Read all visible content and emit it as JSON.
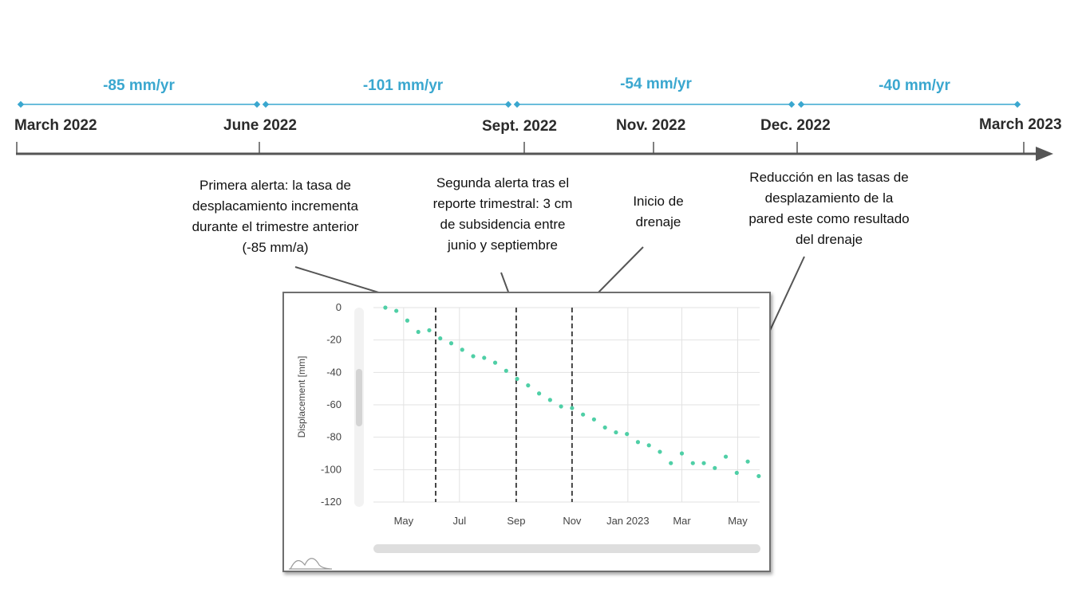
{
  "timeline": {
    "rates": [
      {
        "label": "-85 mm/yr"
      },
      {
        "label": "-101 mm/yr"
      },
      {
        "label": "-54 mm/yr"
      },
      {
        "label": "-40 mm/yr"
      }
    ],
    "dates": [
      {
        "label": "March 2022"
      },
      {
        "label": "June 2022"
      },
      {
        "label": "Sept. 2022"
      },
      {
        "label": "Nov. 2022"
      },
      {
        "label": "Dec. 2022"
      },
      {
        "label": "March 2023"
      }
    ],
    "colors": {
      "rate": "#3aa7cf",
      "axis": "#555555"
    }
  },
  "annotations": [
    {
      "text": "Primera alerta: la tasa de\ndesplacamiento incrementa\ndurante el trimestre anterior\n(-85 mm/a)"
    },
    {
      "text": "Segunda alerta tras el\nreporte trimestral: 3 cm\nde subsidencia entre\njunio y septiembre"
    },
    {
      "text": "Inicio de\ndrenaje"
    },
    {
      "text": "Reducción en las tasas de\ndesplazamiento de la\npared este como resultado\ndel drenaje"
    }
  ],
  "chart_data": {
    "type": "scatter",
    "ylabel": "Displacement [mm]",
    "ylim": [
      -120,
      0
    ],
    "yticks": [
      0,
      -20,
      -40,
      -60,
      -80,
      -100,
      -120
    ],
    "xlim": [
      "2022-03-29",
      "2023-05-25"
    ],
    "xticks": [
      {
        "label": "May",
        "date": "2022-05-01"
      },
      {
        "label": "Jul",
        "date": "2022-07-01"
      },
      {
        "label": "Sep",
        "date": "2022-09-01"
      },
      {
        "label": "Nov",
        "date": "2022-11-01"
      },
      {
        "label": "Jan 2023",
        "date": "2023-01-01"
      },
      {
        "label": "Mar",
        "date": "2023-03-01"
      },
      {
        "label": "May",
        "date": "2023-05-01"
      }
    ],
    "grid": true,
    "point_color": "#4fcfa6",
    "event_lines": [
      "2022-06-05",
      "2022-09-01",
      "2022-11-01"
    ],
    "series": [
      {
        "points": [
          {
            "x": "2022-04-11",
            "y": 0
          },
          {
            "x": "2022-04-23",
            "y": -2
          },
          {
            "x": "2022-05-05",
            "y": -8
          },
          {
            "x": "2022-05-17",
            "y": -15
          },
          {
            "x": "2022-05-29",
            "y": -14
          },
          {
            "x": "2022-06-10",
            "y": -19
          },
          {
            "x": "2022-06-22",
            "y": -22
          },
          {
            "x": "2022-07-04",
            "y": -26
          },
          {
            "x": "2022-07-16",
            "y": -30
          },
          {
            "x": "2022-07-28",
            "y": -31
          },
          {
            "x": "2022-08-09",
            "y": -34
          },
          {
            "x": "2022-08-21",
            "y": -39
          },
          {
            "x": "2022-09-02",
            "y": -44
          },
          {
            "x": "2022-09-14",
            "y": -48
          },
          {
            "x": "2022-09-26",
            "y": -53
          },
          {
            "x": "2022-10-08",
            "y": -57
          },
          {
            "x": "2022-10-20",
            "y": -61
          },
          {
            "x": "2022-11-01",
            "y": -62
          },
          {
            "x": "2022-11-13",
            "y": -66
          },
          {
            "x": "2022-11-25",
            "y": -69
          },
          {
            "x": "2022-12-07",
            "y": -74
          },
          {
            "x": "2022-12-19",
            "y": -77
          },
          {
            "x": "2022-12-31",
            "y": -78
          },
          {
            "x": "2023-01-12",
            "y": -83
          },
          {
            "x": "2023-01-24",
            "y": -85
          },
          {
            "x": "2023-02-05",
            "y": -89
          },
          {
            "x": "2023-02-17",
            "y": -96
          },
          {
            "x": "2023-03-01",
            "y": -90
          },
          {
            "x": "2023-03-13",
            "y": -96
          },
          {
            "x": "2023-03-25",
            "y": -96
          },
          {
            "x": "2023-04-06",
            "y": -99
          },
          {
            "x": "2023-04-18",
            "y": -92
          },
          {
            "x": "2023-04-30",
            "y": -102
          },
          {
            "x": "2023-05-12",
            "y": -95
          },
          {
            "x": "2023-05-24",
            "y": -104
          }
        ]
      }
    ]
  }
}
